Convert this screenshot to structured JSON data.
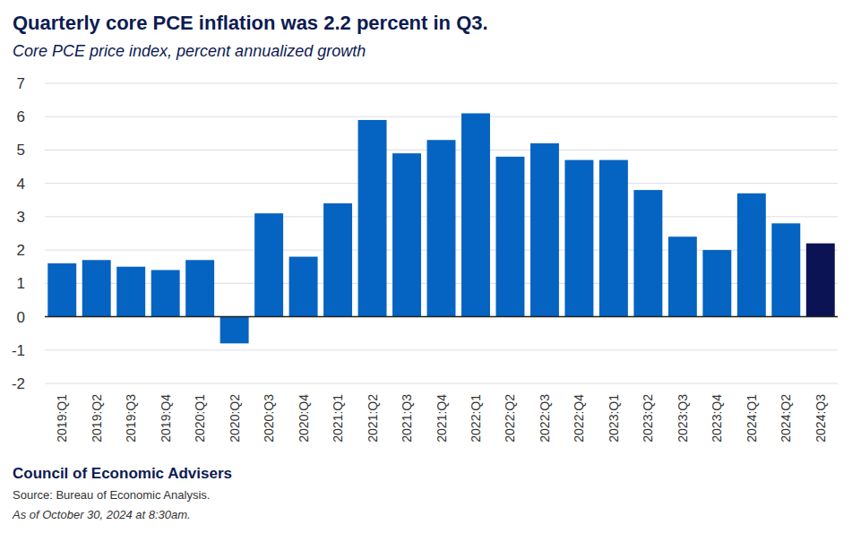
{
  "chart_data": {
    "type": "bar",
    "title": "Quarterly core PCE inflation was 2.2 percent in Q3.",
    "subtitle": "Core PCE price index, percent annualized growth",
    "categories": [
      "2019:Q1",
      "2019:Q2",
      "2019:Q3",
      "2019:Q4",
      "2020:Q1",
      "2020:Q2",
      "2020:Q3",
      "2020:Q4",
      "2021:Q1",
      "2021:Q2",
      "2021:Q3",
      "2021:Q4",
      "2022:Q1",
      "2022:Q2",
      "2022:Q3",
      "2022:Q4",
      "2023:Q1",
      "2023:Q2",
      "2023:Q3",
      "2023:Q4",
      "2024:Q1",
      "2024:Q2",
      "2024:Q3"
    ],
    "values": [
      1.6,
      1.7,
      1.5,
      1.4,
      1.7,
      -0.8,
      3.1,
      1.8,
      3.4,
      5.9,
      4.9,
      5.3,
      6.1,
      4.8,
      5.2,
      4.7,
      4.7,
      3.8,
      2.4,
      2.0,
      3.7,
      2.8,
      2.2
    ],
    "colors": [
      "#0563c1",
      "#0563c1",
      "#0563c1",
      "#0563c1",
      "#0563c1",
      "#0563c1",
      "#0563c1",
      "#0563c1",
      "#0563c1",
      "#0563c1",
      "#0563c1",
      "#0563c1",
      "#0563c1",
      "#0563c1",
      "#0563c1",
      "#0563c1",
      "#0563c1",
      "#0563c1",
      "#0563c1",
      "#0563c1",
      "#0563c1",
      "#0563c1",
      "#0c1354"
    ],
    "ylim": [
      -2,
      7
    ],
    "yticks": [
      -2,
      -1,
      0,
      1,
      2,
      3,
      4,
      5,
      6,
      7
    ],
    "grid": true,
    "branding": "Council of Economic Advisers",
    "source": "Source: Bureau of Economic Analysis.",
    "timestamp": "As of October 30, 2024 at 8:30am."
  }
}
